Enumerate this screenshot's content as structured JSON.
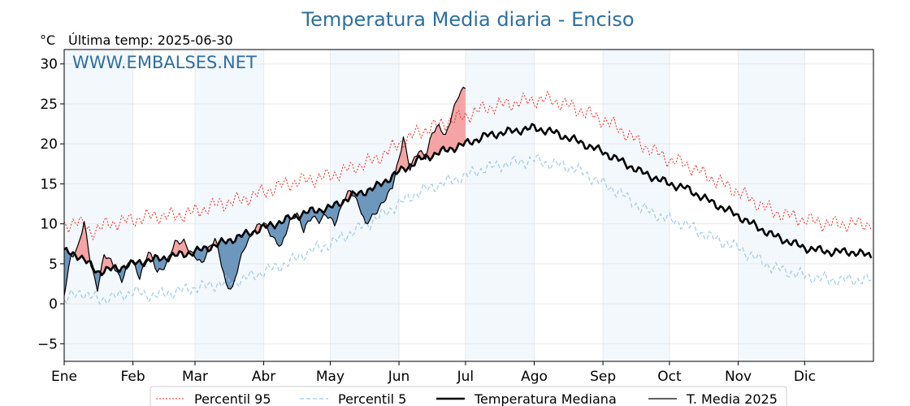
{
  "chart_data": {
    "type": "line",
    "title": "Temperatura Media diaria - Enciso",
    "unit": "°C",
    "last_temp_label": "Última temp: 2025-06-30",
    "watermark": "WWW.EMBALSES.NET",
    "months": [
      "Ene",
      "Feb",
      "Mar",
      "Abr",
      "May",
      "Jun",
      "Jul",
      "Ago",
      "Sep",
      "Oct",
      "Nov",
      "Dic"
    ],
    "month_start_days": [
      0,
      31,
      59,
      90,
      120,
      151,
      181,
      212,
      243,
      273,
      304,
      334
    ],
    "ylim": [
      -7.2,
      31.8
    ],
    "yticks": [
      -5,
      0,
      5,
      10,
      15,
      20,
      25,
      30
    ],
    "ytick_labels": [
      "−5",
      "0",
      "5",
      "10",
      "15",
      "20",
      "25",
      "30"
    ],
    "grid": true,
    "legend_position": "bottom-center",
    "colors": {
      "title": "#2e6f9e",
      "p95": "#e8281e",
      "p5": "#9ecae1",
      "median": "#000000",
      "actual": "#000000",
      "above_fill": "#f4a4a4",
      "below_fill": "#6e97bd",
      "band": "#dbe9f6"
    },
    "series": [
      {
        "name": "Percentil 95",
        "style": "dotted",
        "points": [
          [
            0,
            9.5
          ],
          [
            5,
            10.5
          ],
          [
            12,
            9
          ],
          [
            20,
            10
          ],
          [
            31,
            10.5
          ],
          [
            40,
            11
          ],
          [
            50,
            11
          ],
          [
            59,
            11.5
          ],
          [
            70,
            12.5
          ],
          [
            80,
            13
          ],
          [
            90,
            14
          ],
          [
            100,
            15
          ],
          [
            110,
            15.5
          ],
          [
            120,
            16
          ],
          [
            130,
            17
          ],
          [
            140,
            18
          ],
          [
            151,
            20
          ],
          [
            160,
            21.5
          ],
          [
            170,
            22.5
          ],
          [
            181,
            23.5
          ],
          [
            190,
            24.5
          ],
          [
            200,
            25
          ],
          [
            212,
            25.5
          ],
          [
            220,
            25.5
          ],
          [
            230,
            24.5
          ],
          [
            243,
            23
          ],
          [
            250,
            22
          ],
          [
            260,
            20
          ],
          [
            273,
            18
          ],
          [
            280,
            17.5
          ],
          [
            290,
            16
          ],
          [
            304,
            14
          ],
          [
            310,
            13
          ],
          [
            320,
            11.5
          ],
          [
            334,
            10.5
          ],
          [
            345,
            10
          ],
          [
            355,
            10
          ],
          [
            364,
            10
          ]
        ]
      },
      {
        "name": "Percentil 5",
        "style": "dashed",
        "points": [
          [
            0,
            0.5
          ],
          [
            8,
            1.5
          ],
          [
            15,
            0.5
          ],
          [
            25,
            1
          ],
          [
            31,
            1.5
          ],
          [
            40,
            1
          ],
          [
            50,
            1.5
          ],
          [
            59,
            2
          ],
          [
            70,
            2.5
          ],
          [
            80,
            3
          ],
          [
            90,
            4
          ],
          [
            100,
            5
          ],
          [
            110,
            6.5
          ],
          [
            120,
            7.5
          ],
          [
            130,
            9
          ],
          [
            140,
            10.5
          ],
          [
            151,
            12.5
          ],
          [
            160,
            14
          ],
          [
            170,
            15
          ],
          [
            181,
            16
          ],
          [
            190,
            17
          ],
          [
            200,
            17.5
          ],
          [
            212,
            18
          ],
          [
            220,
            17.5
          ],
          [
            230,
            17
          ],
          [
            243,
            15
          ],
          [
            250,
            14
          ],
          [
            260,
            12
          ],
          [
            273,
            10.5
          ],
          [
            280,
            10
          ],
          [
            290,
            8.5
          ],
          [
            304,
            7
          ],
          [
            310,
            6
          ],
          [
            320,
            4.5
          ],
          [
            334,
            3.5
          ],
          [
            345,
            3
          ],
          [
            355,
            3
          ],
          [
            364,
            3
          ]
        ]
      },
      {
        "name": "Temperatura Mediana",
        "style": "solid-bold",
        "points": [
          [
            0,
            6.5
          ],
          [
            7,
            6
          ],
          [
            15,
            4
          ],
          [
            25,
            4.5
          ],
          [
            31,
            5
          ],
          [
            40,
            5.5
          ],
          [
            50,
            6
          ],
          [
            59,
            6.5
          ],
          [
            70,
            7.5
          ],
          [
            80,
            8.5
          ],
          [
            90,
            9.5
          ],
          [
            100,
            10.5
          ],
          [
            110,
            11.5
          ],
          [
            120,
            12
          ],
          [
            130,
            13.5
          ],
          [
            140,
            14.5
          ],
          [
            151,
            16.5
          ],
          [
            160,
            18
          ],
          [
            170,
            19
          ],
          [
            181,
            20
          ],
          [
            190,
            21
          ],
          [
            200,
            21.5
          ],
          [
            212,
            22
          ],
          [
            220,
            21.5
          ],
          [
            230,
            20.5
          ],
          [
            243,
            19
          ],
          [
            250,
            18
          ],
          [
            260,
            16.5
          ],
          [
            273,
            15
          ],
          [
            280,
            14.5
          ],
          [
            290,
            13
          ],
          [
            304,
            11
          ],
          [
            310,
            10
          ],
          [
            320,
            8.5
          ],
          [
            334,
            7
          ],
          [
            345,
            6.5
          ],
          [
            355,
            6.5
          ],
          [
            364,
            6
          ]
        ]
      },
      {
        "name": "T. Media 2025",
        "style": "solid-thin",
        "points": [
          [
            0,
            1
          ],
          [
            3,
            6
          ],
          [
            6,
            7
          ],
          [
            9,
            10
          ],
          [
            12,
            5
          ],
          [
            15,
            2
          ],
          [
            18,
            6
          ],
          [
            22,
            5
          ],
          [
            26,
            3
          ],
          [
            30,
            5.5
          ],
          [
            34,
            3.5
          ],
          [
            38,
            6.5
          ],
          [
            42,
            4
          ],
          [
            46,
            5
          ],
          [
            50,
            7.5
          ],
          [
            54,
            8
          ],
          [
            58,
            6
          ],
          [
            62,
            5
          ],
          [
            65,
            7
          ],
          [
            68,
            8
          ],
          [
            70,
            6
          ],
          [
            73,
            2.5
          ],
          [
            76,
            2
          ],
          [
            79,
            5
          ],
          [
            82,
            7.5
          ],
          [
            86,
            9.5
          ],
          [
            90,
            10
          ],
          [
            94,
            8.5
          ],
          [
            98,
            7
          ],
          [
            102,
            10.5
          ],
          [
            105,
            11.5
          ],
          [
            108,
            9
          ],
          [
            112,
            11
          ],
          [
            115,
            10.5
          ],
          [
            118,
            11
          ],
          [
            122,
            10
          ],
          [
            126,
            13
          ],
          [
            129,
            14
          ],
          [
            133,
            12.5
          ],
          [
            136,
            10
          ],
          [
            140,
            11
          ],
          [
            144,
            13
          ],
          [
            148,
            14.5
          ],
          [
            151,
            18
          ],
          [
            153,
            21
          ],
          [
            156,
            17
          ],
          [
            160,
            19
          ],
          [
            163,
            18.5
          ],
          [
            166,
            21.5
          ],
          [
            169,
            22
          ],
          [
            172,
            21
          ],
          [
            175,
            24
          ],
          [
            178,
            26
          ],
          [
            181,
            27
          ]
        ]
      }
    ],
    "legend": [
      "Percentil 95",
      "Percentil 5",
      "Temperatura Mediana",
      "T. Media 2025"
    ]
  }
}
